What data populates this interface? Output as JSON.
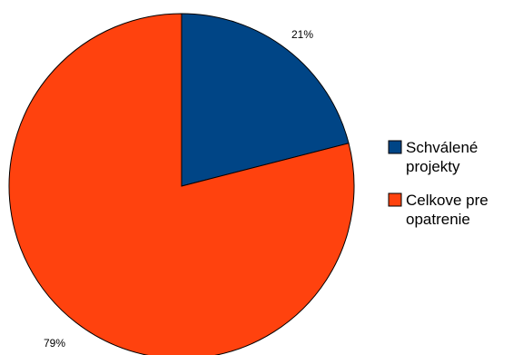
{
  "chart_data": {
    "type": "pie",
    "title": "",
    "legend_position": "right",
    "series": [
      {
        "name": "",
        "slices": [
          {
            "label_lines": [
              "Schválené",
              "projekty"
            ],
            "value": 21,
            "data_label": "21%",
            "color": "#004586"
          },
          {
            "label_lines": [
              "Celkove pre",
              "opatrenie"
            ],
            "value": 79,
            "data_label": "79%",
            "color": "#ff420e"
          }
        ]
      }
    ]
  }
}
